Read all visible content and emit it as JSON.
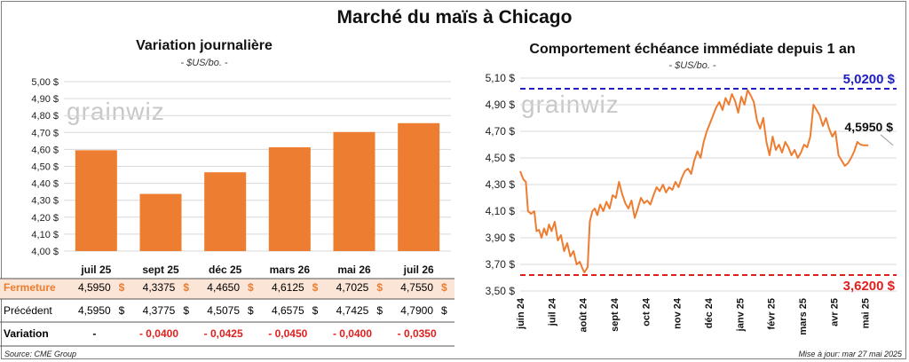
{
  "title": "Marché du maïs à Chicago",
  "left_chart": {
    "title": "Variation journalière",
    "unit": "- $US/bo. -",
    "watermark": "grainwiz"
  },
  "right_chart": {
    "title": "Comportement échéance immédiate depuis 1 an",
    "unit": "- $US/bo. -",
    "watermark": "grainwiz",
    "high_label": "5,0200 $",
    "low_label": "3,6200 $",
    "last_label": "4,5950 $"
  },
  "table": {
    "rows": [
      {
        "label": "Fermeture",
        "values": [
          "4,5950",
          "4,3375",
          "4,4650",
          "4,6125",
          "4,7025",
          "4,7550"
        ],
        "dollar": "$"
      },
      {
        "label": "Précédent",
        "values": [
          "4,5950",
          "4,3775",
          "4,5075",
          "4,6575",
          "4,7425",
          "4,7900"
        ],
        "dollar": "$"
      },
      {
        "label": "Variation",
        "values": [
          "-",
          "- 0,0400",
          "- 0,0425",
          "- 0,0450",
          "- 0,0400",
          "- 0,0350"
        ],
        "dollar": ""
      }
    ]
  },
  "footer": {
    "source": "Source: CME Group",
    "updated": "Mise à jour: mar 27 mai 2025"
  },
  "colors": {
    "bar": "#ED7D31",
    "line": "#ED7D31",
    "high": "#1F1FBF",
    "low": "#E0201E",
    "negative": "#E0201E",
    "highlight_row": "#FBE5D6"
  },
  "chart_data": [
    {
      "type": "bar",
      "categories": [
        "juil 25",
        "sept 25",
        "déc 25",
        "mars 26",
        "mai 26",
        "juil 26"
      ],
      "values": [
        4.595,
        4.3375,
        4.465,
        4.6125,
        4.7025,
        4.755
      ],
      "ylim": [
        4.0,
        5.0
      ],
      "yticks": [
        "4,00 $",
        "4,10 $",
        "4,20 $",
        "4,30 $",
        "4,40 $",
        "4,50 $",
        "4,60 $",
        "4,70 $",
        "4,80 $",
        "4,90 $",
        "5,00 $"
      ],
      "grid": true
    },
    {
      "type": "line",
      "ylim": [
        3.5,
        5.1
      ],
      "yticks": [
        "3,50 $",
        "3,70 $",
        "3,90 $",
        "4,10 $",
        "4,30 $",
        "4,50 $",
        "4,70 $",
        "4,90 $",
        "5,10 $"
      ],
      "xticks": [
        "juin 24",
        "juil 24",
        "août 24",
        "sept 24",
        "oct 24",
        "nov 24",
        "déc 24",
        "janv 25",
        "févr 25",
        "mars 25",
        "avr 25",
        "mai 25"
      ],
      "xrange_months": [
        0,
        12
      ],
      "high": 5.02,
      "low": 3.62,
      "last": 4.595,
      "series": [
        {
          "points": [
            [
              0.0,
              4.4
            ],
            [
              0.1,
              4.34
            ],
            [
              0.18,
              4.32
            ],
            [
              0.25,
              4.1
            ],
            [
              0.35,
              4.08
            ],
            [
              0.45,
              4.1
            ],
            [
              0.52,
              3.95
            ],
            [
              0.6,
              3.96
            ],
            [
              0.68,
              3.9
            ],
            [
              0.76,
              3.97
            ],
            [
              0.84,
              3.92
            ],
            [
              0.92,
              4.0
            ],
            [
              1.0,
              3.95
            ],
            [
              1.1,
              4.02
            ],
            [
              1.2,
              3.88
            ],
            [
              1.3,
              3.92
            ],
            [
              1.4,
              3.8
            ],
            [
              1.5,
              3.86
            ],
            [
              1.6,
              3.76
            ],
            [
              1.7,
              3.8
            ],
            [
              1.8,
              3.7
            ],
            [
              1.9,
              3.72
            ],
            [
              2.0,
              3.66
            ],
            [
              2.05,
              3.64
            ],
            [
              2.15,
              3.68
            ],
            [
              2.22,
              4.02
            ],
            [
              2.3,
              4.1
            ],
            [
              2.38,
              4.12
            ],
            [
              2.46,
              4.07
            ],
            [
              2.55,
              4.15
            ],
            [
              2.65,
              4.1
            ],
            [
              2.75,
              4.17
            ],
            [
              2.85,
              4.12
            ],
            [
              2.95,
              4.22
            ],
            [
              3.05,
              4.2
            ],
            [
              3.15,
              4.32
            ],
            [
              3.25,
              4.23
            ],
            [
              3.35,
              4.16
            ],
            [
              3.45,
              4.12
            ],
            [
              3.55,
              4.18
            ],
            [
              3.65,
              4.05
            ],
            [
              3.75,
              4.12
            ],
            [
              3.85,
              4.2
            ],
            [
              3.95,
              4.16
            ],
            [
              4.05,
              4.18
            ],
            [
              4.15,
              4.15
            ],
            [
              4.25,
              4.22
            ],
            [
              4.35,
              4.28
            ],
            [
              4.45,
              4.25
            ],
            [
              4.55,
              4.3
            ],
            [
              4.65,
              4.24
            ],
            [
              4.75,
              4.28
            ],
            [
              4.85,
              4.26
            ],
            [
              4.95,
              4.32
            ],
            [
              5.05,
              4.28
            ],
            [
              5.15,
              4.35
            ],
            [
              5.25,
              4.4
            ],
            [
              5.35,
              4.42
            ],
            [
              5.45,
              4.38
            ],
            [
              5.55,
              4.48
            ],
            [
              5.65,
              4.55
            ],
            [
              5.75,
              4.5
            ],
            [
              5.85,
              4.62
            ],
            [
              5.95,
              4.7
            ],
            [
              6.05,
              4.76
            ],
            [
              6.15,
              4.82
            ],
            [
              6.25,
              4.88
            ],
            [
              6.35,
              4.92
            ],
            [
              6.45,
              4.86
            ],
            [
              6.55,
              4.95
            ],
            [
              6.65,
              4.9
            ],
            [
              6.75,
              4.98
            ],
            [
              6.85,
              4.93
            ],
            [
              6.95,
              4.84
            ],
            [
              7.05,
              4.96
            ],
            [
              7.15,
              4.9
            ],
            [
              7.25,
              5.01
            ],
            [
              7.35,
              4.97
            ],
            [
              7.45,
              4.92
            ],
            [
              7.55,
              4.78
            ],
            [
              7.65,
              4.72
            ],
            [
              7.75,
              4.8
            ],
            [
              7.85,
              4.62
            ],
            [
              7.95,
              4.52
            ],
            [
              8.05,
              4.66
            ],
            [
              8.15,
              4.56
            ],
            [
              8.25,
              4.6
            ],
            [
              8.35,
              4.54
            ],
            [
              8.45,
              4.62
            ],
            [
              8.55,
              4.58
            ],
            [
              8.65,
              4.52
            ],
            [
              8.75,
              4.56
            ],
            [
              8.85,
              4.5
            ],
            [
              8.95,
              4.54
            ],
            [
              9.05,
              4.6
            ],
            [
              9.15,
              4.58
            ],
            [
              9.25,
              4.66
            ],
            [
              9.35,
              4.9
            ],
            [
              9.45,
              4.86
            ],
            [
              9.55,
              4.82
            ],
            [
              9.65,
              4.74
            ],
            [
              9.75,
              4.8
            ],
            [
              9.85,
              4.72
            ],
            [
              9.95,
              4.66
            ],
            [
              10.05,
              4.7
            ],
            [
              10.15,
              4.52
            ],
            [
              10.25,
              4.48
            ],
            [
              10.35,
              4.44
            ],
            [
              10.45,
              4.46
            ],
            [
              10.55,
              4.5
            ],
            [
              10.65,
              4.55
            ],
            [
              10.75,
              4.62
            ],
            [
              10.85,
              4.6
            ],
            [
              10.95,
              4.595
            ],
            [
              11.1,
              4.595
            ]
          ]
        }
      ]
    }
  ]
}
